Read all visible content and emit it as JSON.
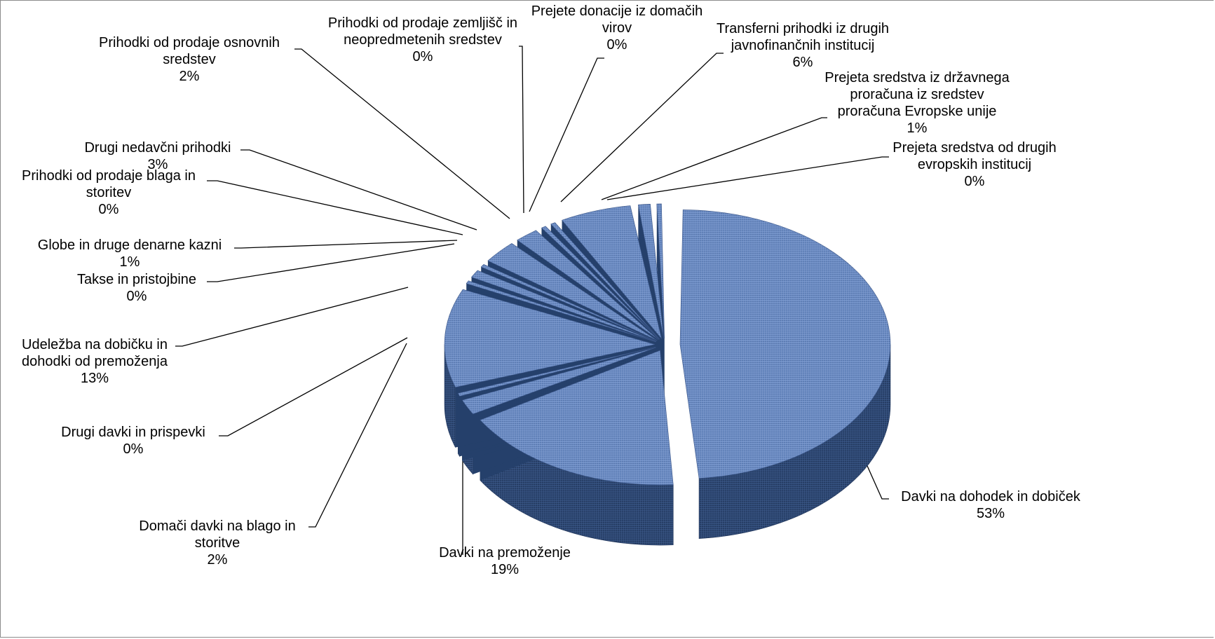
{
  "chart_data": {
    "type": "pie",
    "title": "",
    "style": "3d-exploded",
    "colors": {
      "top": "#6f8fc6",
      "side": "#2f4a76",
      "texture": "#3e5c92"
    },
    "slices": [
      {
        "label_lines": [
          "Davki na dohodek in dobiček"
        ],
        "pct_text": "53%",
        "value": 53
      },
      {
        "label_lines": [
          "Davki na premoženje"
        ],
        "pct_text": "19%",
        "value": 19
      },
      {
        "label_lines": [
          "Domači davki na blago in",
          "storitve"
        ],
        "pct_text": "2%",
        "value": 2
      },
      {
        "label_lines": [
          "Drugi davki in prispevki"
        ],
        "pct_text": "0%",
        "value": 0
      },
      {
        "label_lines": [
          "Udeležba na dobičku in",
          "dohodki od premoženja"
        ],
        "pct_text": "13%",
        "value": 13
      },
      {
        "label_lines": [
          "Takse in pristojbine"
        ],
        "pct_text": "0%",
        "value": 0
      },
      {
        "label_lines": [
          "Globe in druge denarne kazni"
        ],
        "pct_text": "1%",
        "value": 1
      },
      {
        "label_lines": [
          "Prihodki od prodaje blaga in",
          "storitev"
        ],
        "pct_text": "0%",
        "value": 0
      },
      {
        "label_lines": [
          "Drugi nedavčni prihodki"
        ],
        "pct_text": "3%",
        "value": 3
      },
      {
        "label_lines": [
          "Prihodki od prodaje osnovnih",
          "sredstev"
        ],
        "pct_text": "2%",
        "value": 2
      },
      {
        "label_lines": [
          "Prihodki od prodaje zemljišč in",
          "neopredmetenih sredstev"
        ],
        "pct_text": "0%",
        "value": 0
      },
      {
        "label_lines": [
          "Prejete donacije iz domačih",
          "virov"
        ],
        "pct_text": "0%",
        "value": 0
      },
      {
        "label_lines": [
          "Transferni prihodki iz drugih",
          "javnofinančnih institucij"
        ],
        "pct_text": "6%",
        "value": 6
      },
      {
        "label_lines": [
          "Prejeta sredstva iz državnega",
          "proračuna iz sredstev",
          "proračuna Evropske unije"
        ],
        "pct_text": "1%",
        "value": 1
      },
      {
        "label_lines": [
          "Prejeta sredstva od drugih",
          "evropskih institucij"
        ],
        "pct_text": "0%",
        "value": 0
      }
    ]
  }
}
